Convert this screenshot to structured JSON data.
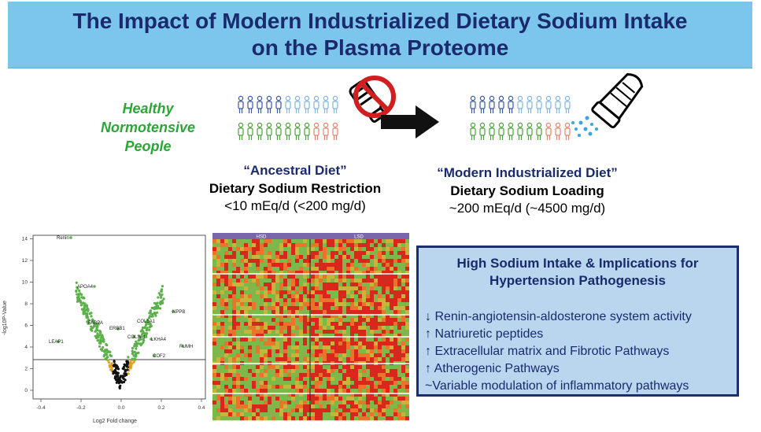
{
  "title": {
    "line1": "The Impact of Modern Industrialized Dietary Sodium Intake",
    "line2": "on the Plasma Proteome"
  },
  "population": {
    "line1": "Healthy",
    "line2": "Normotensive",
    "line3": "People"
  },
  "ancestral": {
    "title": "“Ancestral Diet”",
    "subtitle": "Dietary Sodium Restriction",
    "amount": "<10 mEq/d (<200 mg/d)"
  },
  "modern": {
    "title": "“Modern Industrialized Diet”",
    "subtitle": "Dietary Sodium Loading",
    "amount": "~200 mEq/d (~4500 mg/d)"
  },
  "volcano": {
    "xlabel": "Log2 Fold change",
    "ylabel": "-log10P-Value",
    "xticks": [
      "-0.4",
      "-0.2",
      "0.0",
      "0.2",
      "0.4"
    ],
    "yticks": [
      "0",
      "2",
      "4",
      "6",
      "8",
      "10",
      "12",
      "14"
    ],
    "labels": {
      "renin": "Renin",
      "apoa4": "APOA4",
      "fabpa": "FABPA",
      "erbb1": "ERBB1",
      "col5a1": "COL5A1",
      "nppb": "NPPB",
      "col3a1": "COL3A1",
      "lkha4": "LKHA4",
      "leap1": "LEAP1",
      "cof2": "COF2",
      "fumh": "FUMH"
    }
  },
  "heatmap": {
    "group_left": "HSD",
    "group_right": "LSD"
  },
  "box": {
    "title_line1": "High Sodium Intake & Implications for",
    "title_line2": "Hypertension Pathogenesis",
    "items": [
      "↓ Renin-angiotensin-aldosterone system activity",
      "↑ Natriuretic peptides",
      "↑ Extracellular matrix and Fibrotic Pathways",
      "↑ Atherogenic Pathways",
      "~Variable modulation of inflammatory pathways"
    ]
  },
  "colors": {
    "banner": "#7cc5ec",
    "title_text": "#1a2a6c",
    "healthy_text": "#2aa836",
    "box_bg": "#bad6ef",
    "box_border": "#1e2e6b",
    "no_sign": "#d11f1f",
    "heat_header": "#7a66a8"
  }
}
